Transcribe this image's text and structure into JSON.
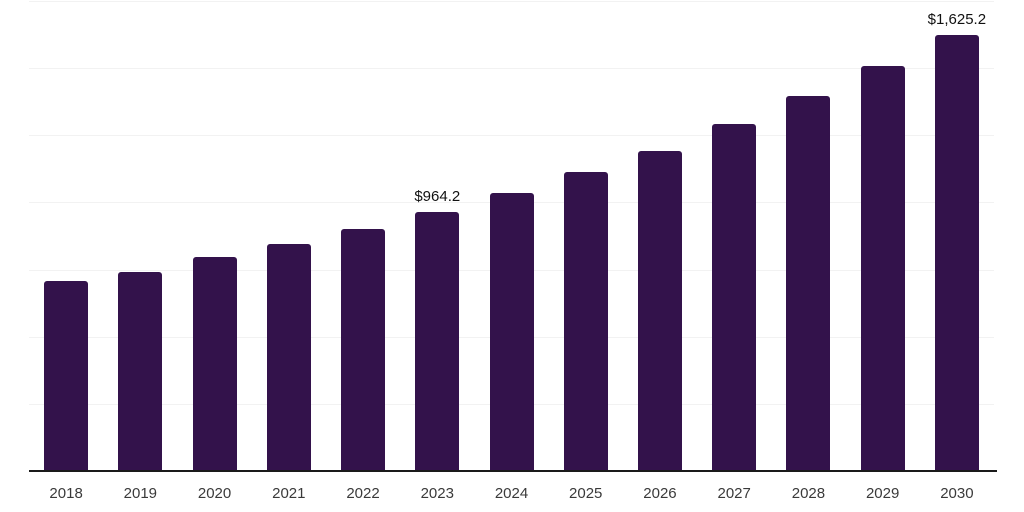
{
  "chart_data": {
    "type": "bar",
    "title": "",
    "xlabel": "",
    "ylabel": "",
    "categories": [
      "2018",
      "2019",
      "2020",
      "2021",
      "2022",
      "2023",
      "2024",
      "2025",
      "2026",
      "2027",
      "2028",
      "2029",
      "2030"
    ],
    "values": [
      708,
      742,
      797,
      846,
      902,
      964.2,
      1035,
      1113,
      1190,
      1292,
      1398,
      1507,
      1625.2
    ],
    "point_labels": [
      {
        "category": "2023",
        "text": "$964.2"
      },
      {
        "category": "2030",
        "text": "$1,625.2"
      }
    ],
    "ylim": [
      0,
      1750
    ],
    "grid_step": 250,
    "grid": true,
    "legend": false,
    "colors": {
      "bar": "#33124B",
      "axis": "#1a1a1a",
      "gridline": "#f2f2f2",
      "tick_label": "#3a3a3a",
      "value_label": "#111111",
      "background": "#ffffff"
    }
  }
}
